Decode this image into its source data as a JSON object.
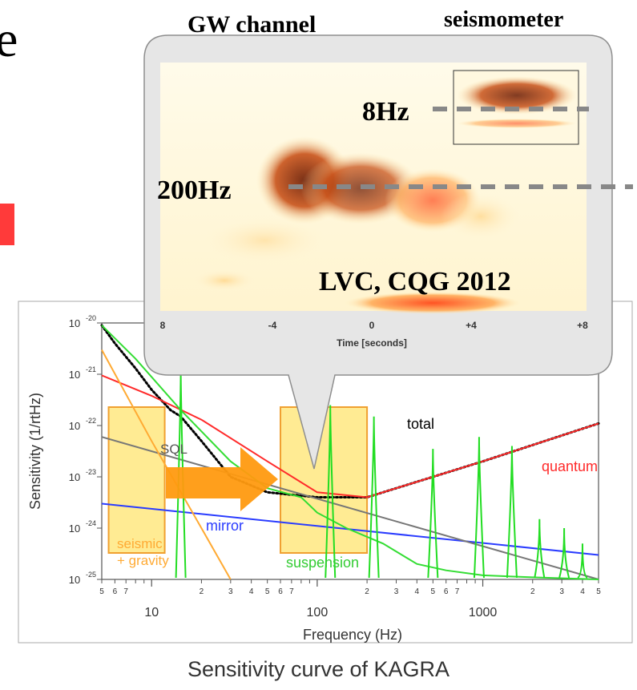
{
  "slide": {
    "caption": "Sensitivity curve of KAGRA",
    "left_glyph": "e"
  },
  "callout": {
    "gw_channel_label": "GW channel",
    "seismometer_label": "seismometer",
    "label_8hz": "8Hz",
    "label_200hz": "200Hz",
    "citation": "LVC, CQG 2012",
    "time_axis_label": "Time [seconds]",
    "time_ticks": [
      "8",
      "-4",
      "0",
      "+4",
      "+8"
    ]
  },
  "chart_data": {
    "type": "line",
    "xlabel": "Frequency (Hz)",
    "ylabel": "Sensitivity (1/rtHz)",
    "x_scale": "log",
    "y_scale": "log",
    "xlim": [
      5,
      5000
    ],
    "ylim": [
      1e-25,
      1e-20
    ],
    "x_major_ticks": [
      "10",
      "100",
      "1000"
    ],
    "x_minor_tick_labels": [
      "5",
      "6",
      "7",
      "2",
      "3",
      "4",
      "5",
      "6",
      "7",
      "2",
      "3",
      "4",
      "5",
      "6",
      "7",
      "2",
      "3",
      "4",
      "5"
    ],
    "y_ticks": [
      "10^-20",
      "10^-21",
      "10^-22",
      "10^-23",
      "10^-24",
      "10^-25"
    ],
    "y_tick_base": "10",
    "y_tick_exponents": [
      "-20",
      "-21",
      "-22",
      "-23",
      "-24",
      "-25"
    ],
    "series": [
      {
        "name": "total",
        "color": "#000000",
        "style": "dotted",
        "x": [
          5,
          6,
          8,
          10,
          13,
          15,
          20,
          30,
          50,
          100,
          200,
          500,
          1000,
          5000
        ],
        "y": [
          9e-21,
          4e-21,
          1.3e-21,
          5e-22,
          2e-22,
          1.5e-22,
          5e-23,
          1e-23,
          5e-24,
          4e-24,
          4e-24,
          1e-23,
          2e-23,
          1.1e-22
        ]
      },
      {
        "name": "quantum",
        "color": "#ff2a2a",
        "style": "solid",
        "x": [
          5,
          10,
          20,
          50,
          100,
          200,
          500,
          1000,
          5000
        ],
        "y": [
          9.5e-22,
          3.8e-22,
          1.3e-22,
          2e-23,
          5e-24,
          4e-24,
          1e-23,
          2e-23,
          1.1e-22
        ]
      },
      {
        "name": "mirror",
        "color": "#2a3cff",
        "style": "solid",
        "x": [
          5,
          5000
        ],
        "y": [
          3e-24,
          3e-25
        ]
      },
      {
        "name": "SQL",
        "color": "#777777",
        "style": "solid",
        "x": [
          5,
          5000
        ],
        "y": [
          6e-23,
          1e-25
        ]
      },
      {
        "name": "seismic + gravity",
        "color": "#ffaa33",
        "style": "solid",
        "x": [
          5,
          10,
          20,
          30
        ],
        "y": [
          3e-21,
          5e-23,
          1e-24,
          1e-25
        ]
      },
      {
        "name": "suspension",
        "color": "#33dd33",
        "style": "solid",
        "x": [
          5,
          8,
          15,
          30,
          50,
          80,
          100,
          150,
          250,
          400,
          600,
          1000,
          2000,
          5000
        ],
        "y": [
          9e-21,
          2e-21,
          2e-22,
          2e-23,
          6e-24,
          4e-24,
          2e-24,
          1e-24,
          5e-25,
          2e-25,
          1.5e-25,
          1.2e-25,
          1.1e-25,
          1e-25
        ]
      }
    ],
    "series_labels": {
      "total": "total",
      "quantum": "quantum",
      "mirror": "mirror",
      "SQL": "SQL",
      "seismic_line1": "seismic",
      "seismic_line2": "+ gravity",
      "suspension": "suspension"
    },
    "highlight_bands_hz": [
      [
        5.5,
        12
      ],
      [
        60,
        200
      ]
    ],
    "arrow": "band at 5.5–12 Hz pointing toward band at 60–200 Hz"
  }
}
